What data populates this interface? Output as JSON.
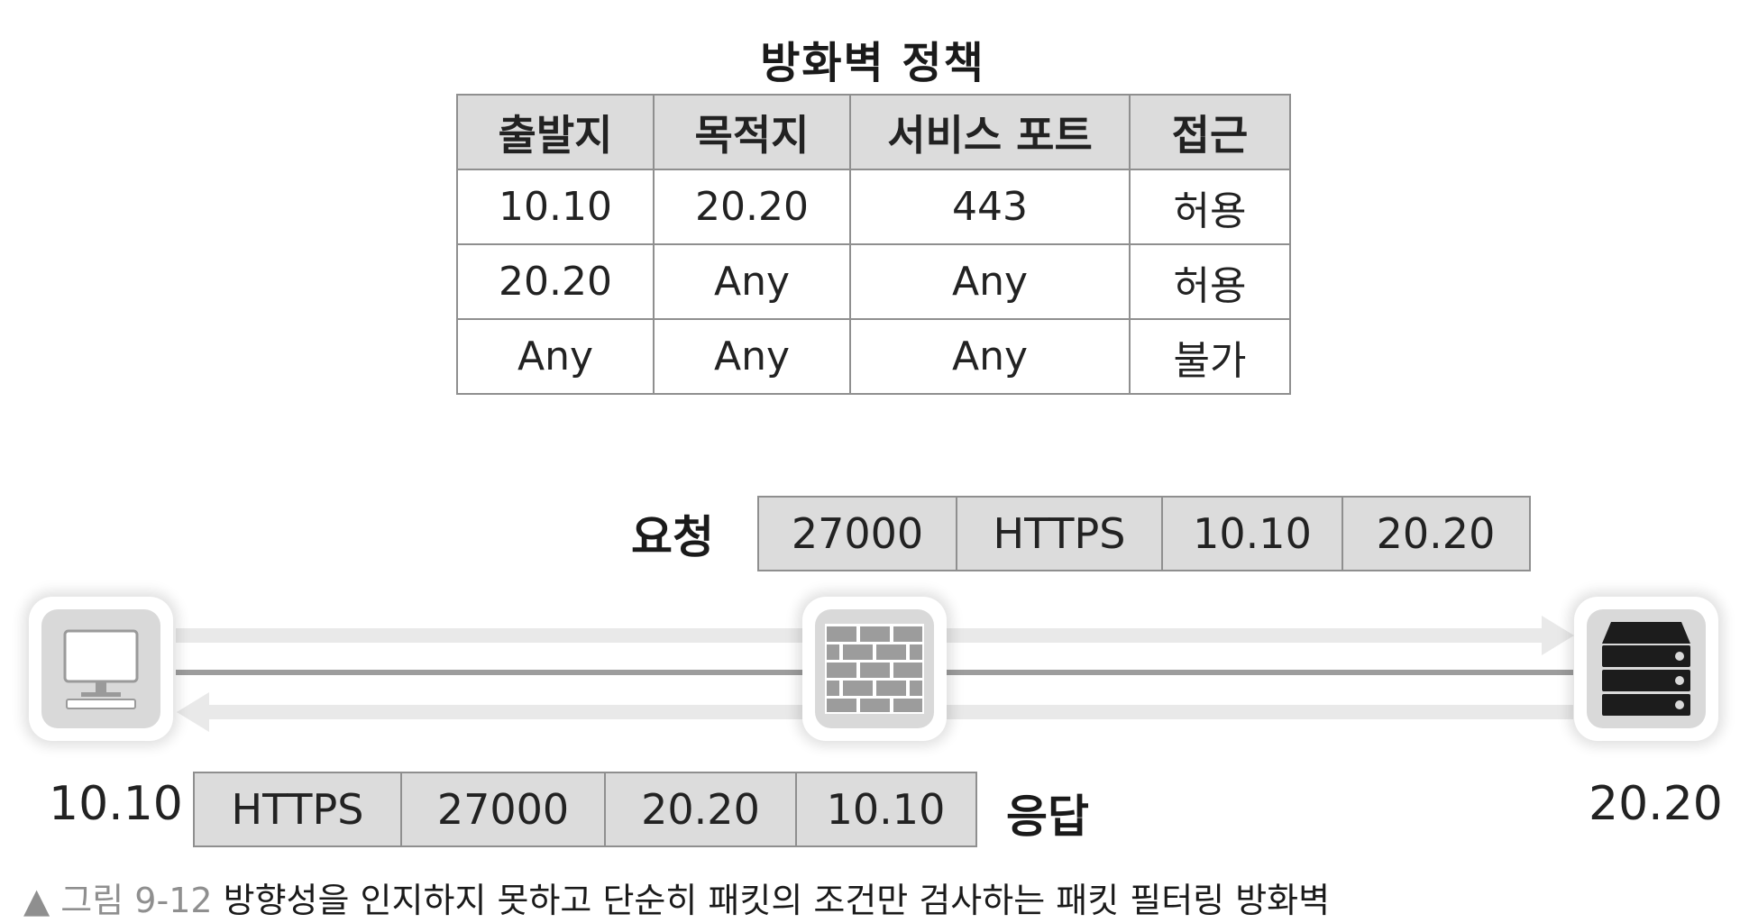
{
  "policy": {
    "title": "방화벽 정책",
    "headers": [
      "출발지",
      "목적지",
      "서비스 포트",
      "접근"
    ],
    "rows": [
      [
        "10.10",
        "20.20",
        "443",
        "허용"
      ],
      [
        "20.20",
        "Any",
        "Any",
        "허용"
      ],
      [
        "Any",
        "Any",
        "Any",
        "불가"
      ]
    ]
  },
  "request": {
    "label": "요청",
    "fields": [
      "27000",
      "HTTPS",
      "10.10",
      "20.20"
    ]
  },
  "response": {
    "label": "응답",
    "fields": [
      "HTTPS",
      "27000",
      "20.20",
      "10.10"
    ]
  },
  "nodes": {
    "client": {
      "ip": "10.10",
      "icon": "computer-icon"
    },
    "firewall": {
      "icon": "brick-firewall-icon"
    },
    "server": {
      "ip": "20.20",
      "icon": "server-icon"
    }
  },
  "caption": {
    "label": "▲ 그림 9-12",
    "text": "방향성을 인지하지 못하고 단순히 패킷의 조건만 검사하는 패킷 필터링 방화벽"
  },
  "colors": {
    "header_fill": "#dcdcdc",
    "border": "#8f8f8f",
    "flow_light": "#e9e9e9",
    "flow_line": "#9d9d9d",
    "icon_dark": "#1c1c1c"
  }
}
